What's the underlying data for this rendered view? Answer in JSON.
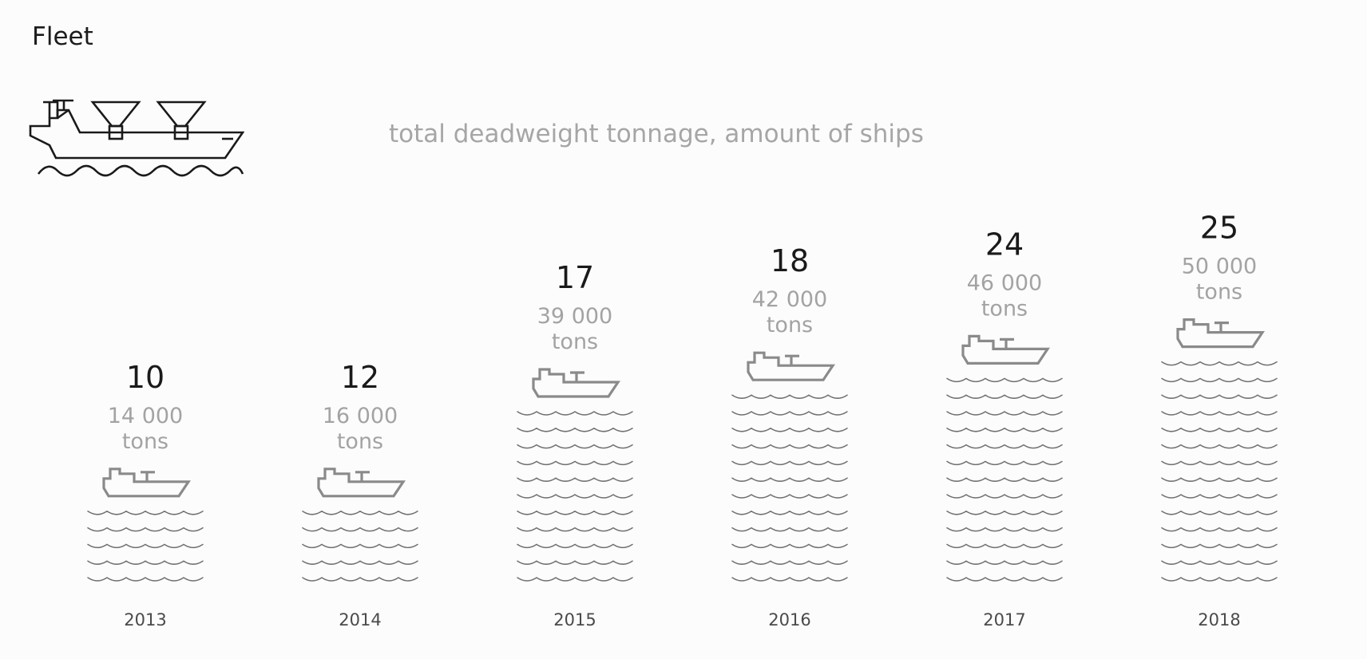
{
  "header": {
    "title": "Fleet",
    "subtitle": "total deadweight tonnage, amount of ships",
    "hero_icon": "cargo-ship-icon"
  },
  "chart_data": {
    "type": "bar",
    "title": "Fleet",
    "subtitle": "total deadweight tonnage, amount of ships",
    "categories": [
      "2013",
      "2014",
      "2015",
      "2016",
      "2017",
      "2018"
    ],
    "series": [
      {
        "name": "",
        "values": [
          10,
          12,
          17,
          18,
          24,
          25
        ]
      }
    ],
    "tonnage_values": [
      14000,
      16000,
      39000,
      42000,
      46000,
      50000
    ],
    "count_labels": [
      "10",
      "12",
      "17",
      "18",
      "24",
      "25"
    ],
    "tonnage_labels": [
      "14 000",
      "16 000",
      "39 000",
      "42 000",
      "46 000",
      "50 000"
    ],
    "unit": "tons",
    "bar_icon": "ship-icon",
    "bar_fill_icon": "waves-icon",
    "colors": {
      "count": "#1a1a1a",
      "tonnage": "#a3a3a3",
      "ship": "#8a8a8a",
      "waves": "#707070",
      "year": "#4a4a4a"
    }
  }
}
